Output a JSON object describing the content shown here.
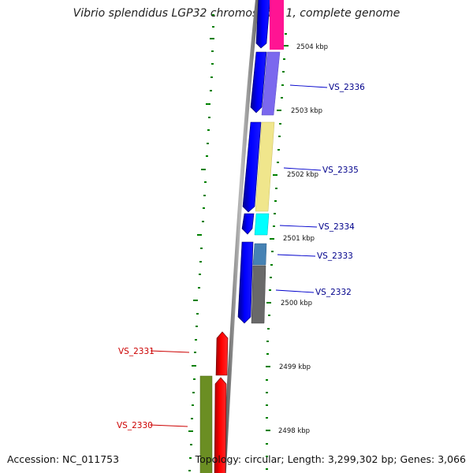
{
  "title": "Vibrio splendidus LGP32 chromosome 1, complete genome",
  "footer": {
    "accession": "Accession: NC_011753",
    "summary": "Topology: circular; Length: 3,299,302 bp; Genes: 3,066"
  },
  "colors": {
    "forward_strand": "#0000ff",
    "reverse_strand": "#ff0000",
    "backbone": "#888888",
    "tick": "#008000",
    "label_forward": "#00008b",
    "label_reverse": "#cc0000"
  },
  "position_ticks": [
    {
      "label": "2504 kbp"
    },
    {
      "label": "2503 kbp"
    },
    {
      "label": "2502 kbp"
    },
    {
      "label": "2501 kbp"
    },
    {
      "label": "2500 kbp"
    },
    {
      "label": "2499 kbp"
    },
    {
      "label": "2498 kbp"
    }
  ],
  "genes_forward": [
    {
      "name": "VS_2336",
      "cog_color": "#7b68ee"
    },
    {
      "name": "VS_2335",
      "cog_color": "#f0e68c"
    },
    {
      "name": "VS_2334",
      "cog_color": "#00ffff"
    },
    {
      "name": "VS_2333",
      "cog_color": "#4682b4"
    },
    {
      "name": "VS_2332",
      "cog_color": "#696969"
    }
  ],
  "genes_reverse": [
    {
      "name": "VS_2331",
      "cog_color": ""
    },
    {
      "name": "VS_2330",
      "cog_color": "#6b8e23"
    }
  ]
}
